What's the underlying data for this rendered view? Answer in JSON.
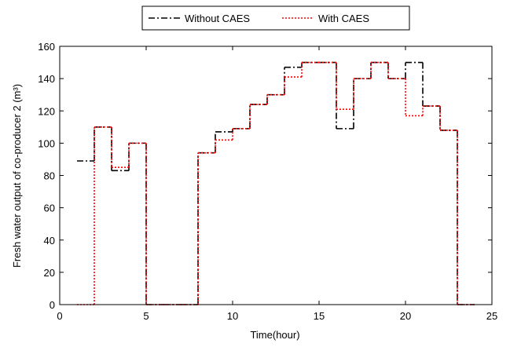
{
  "chart_data": {
    "type": "stairs",
    "xlabel": "Time(hour)",
    "ylabel": "Fresh water output of co-producer 2 (m³)",
    "x": [
      1,
      2,
      3,
      4,
      5,
      6,
      7,
      8,
      9,
      10,
      11,
      12,
      13,
      14,
      15,
      16,
      17,
      18,
      19,
      20,
      21,
      22,
      23,
      24
    ],
    "series": [
      {
        "name": "Without CAES",
        "color": "#000000",
        "dash": "8 3 2 3",
        "values": [
          89,
          110,
          83,
          100,
          0,
          0,
          0,
          94,
          107,
          109,
          124,
          130,
          147,
          150,
          150,
          109,
          140,
          150,
          140,
          150,
          123,
          108,
          0,
          0
        ]
      },
      {
        "name": "With CAES",
        "color": "#ff0000",
        "dash": "2 2",
        "values": [
          0,
          110,
          85,
          100,
          0,
          0,
          0,
          94,
          102,
          109,
          124,
          130,
          141,
          150,
          150,
          121,
          140,
          150,
          140,
          117,
          123,
          108,
          0,
          0
        ]
      }
    ],
    "xlim": [
      0,
      25
    ],
    "xticks": [
      0,
      5,
      10,
      15,
      20,
      25
    ],
    "ylim": [
      0,
      160
    ],
    "yticks": [
      0,
      20,
      40,
      60,
      80,
      100,
      120,
      140,
      160
    ],
    "grid": false,
    "legend": "top"
  }
}
